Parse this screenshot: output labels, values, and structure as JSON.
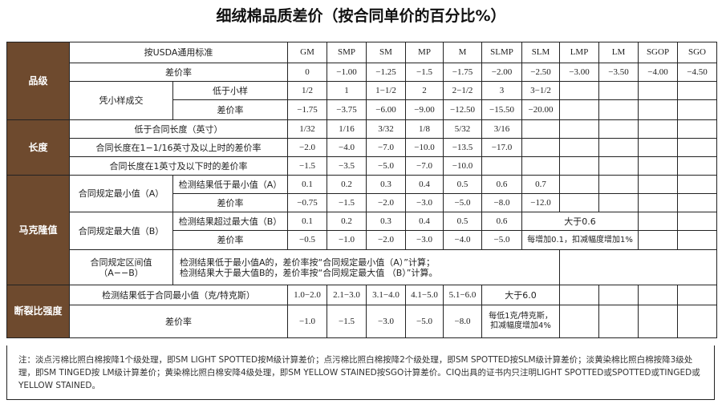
{
  "title": "细绒棉品质差价（按合同单价的百分比%）",
  "header": {
    "label": "按USDA通用标准",
    "grades": [
      "GM",
      "SMP",
      "SM",
      "MP",
      "M",
      "SLMP",
      "SLM",
      "LMP",
      "LM",
      "SGOP",
      "SGO"
    ]
  },
  "grade": {
    "category": "品级",
    "diff_label": "差价率",
    "diffs": [
      "0",
      "−1.00",
      "−1.25",
      "−1.5",
      "−1.75",
      "−2.00",
      "−2.50",
      "−3.00",
      "−3.50",
      "−4.00",
      "−4.50"
    ],
    "sample_label": "凭小样成交",
    "below_sample_label": "低于小样",
    "below_sample": [
      "1/2",
      "1",
      "1−1/2",
      "2",
      "2−1/2",
      "3",
      "3−1/2"
    ],
    "sample_diff_label": "差价率",
    "sample_diffs": [
      "−1.75",
      "−3.75",
      "−6.00",
      "−9.00",
      "−12.50",
      "−15.50",
      "−20.00"
    ]
  },
  "length": {
    "category": "长度",
    "below_label": "低于合同长度（英寸）",
    "below": [
      "1/32",
      "1/16",
      "3/32",
      "1/8",
      "5/32",
      "3/16"
    ],
    "above_label": "合同长度在1−1/16英寸及以上时的差价率",
    "above": [
      "−2.0",
      "−4.0",
      "−7.0",
      "−10.0",
      "−13.5",
      "−17.0"
    ],
    "under_label": "合同长度在1英寸及以下时的差价率",
    "under": [
      "−1.5",
      "−3.5",
      "−5.0",
      "−7.0",
      "−10.0"
    ]
  },
  "micronaire": {
    "category": "马克隆值",
    "min_label": "合同规定最小值（A）",
    "min_test_label": "检测结果低于最小值（A）",
    "min_test": [
      "0.1",
      "0.2",
      "0.3",
      "0.4",
      "0.5",
      "0.6",
      "0.7"
    ],
    "min_diff_label": "差价率",
    "min_diff": [
      "−0.75",
      "−1.5",
      "−2.0",
      "−3.0",
      "−5.0",
      "−8.0",
      "−12.0"
    ],
    "max_label": "合同规定最大值（B）",
    "max_test_label": "检测结果超过最大值（B）",
    "max_test": [
      "0.1",
      "0.2",
      "0.3",
      "0.4",
      "0.5",
      "0.6"
    ],
    "max_test_extra": "大于0.6",
    "max_diff_label": "差价率",
    "max_diff": [
      "−0.5",
      "−1.0",
      "−2.0",
      "−3.0",
      "−4.0",
      "−5.0"
    ],
    "max_diff_extra": "每增加0.1，扣减幅度增加1%",
    "range_label_1": "合同规定区间值",
    "range_label_2": "（A−−B）",
    "range_text_1": "检测结果低于最小值A的，差价率按“合同规定最小值（A）”计算；",
    "range_text_2": "检测结果大于最大值B的，差价率按“合同规定最大值 （B）”计算。"
  },
  "strength": {
    "category": "断裂比强度",
    "below_label": "检测结果低于合同最小值（克/特克斯）",
    "below": [
      "1.0−2.0",
      "2.1−3.0",
      "3.1−4.0",
      "4.1−5.0",
      "5.1−6.0"
    ],
    "below_extra": "大于6.0",
    "diff_label": "差价率",
    "diff": [
      "−1.0",
      "−1.5",
      "−3.0",
      "−5.0",
      "−8.0"
    ],
    "diff_extra_1": "每低1克/特克斯，",
    "diff_extra_2": "扣减幅度增加4%"
  },
  "note": "注：淡点污棉比照白棉按降1个级处理，即SM LIGHT SPOTTED按M级计算差价；点污棉比照白棉按降2个级处理，即SM SPOTTED按SLM级计算差价；淡黄染棉比照白棉按降3级处理，即SM TINGED按 LM级计算差价；黄染棉比照白棉安降4级处理，即SM YELLOW STAINED按SGO计算差价。CIQ出具的证书内只注明LIGHT SPOTTED或SPOTTED或TINGED或 YELLOW STAINED。"
}
